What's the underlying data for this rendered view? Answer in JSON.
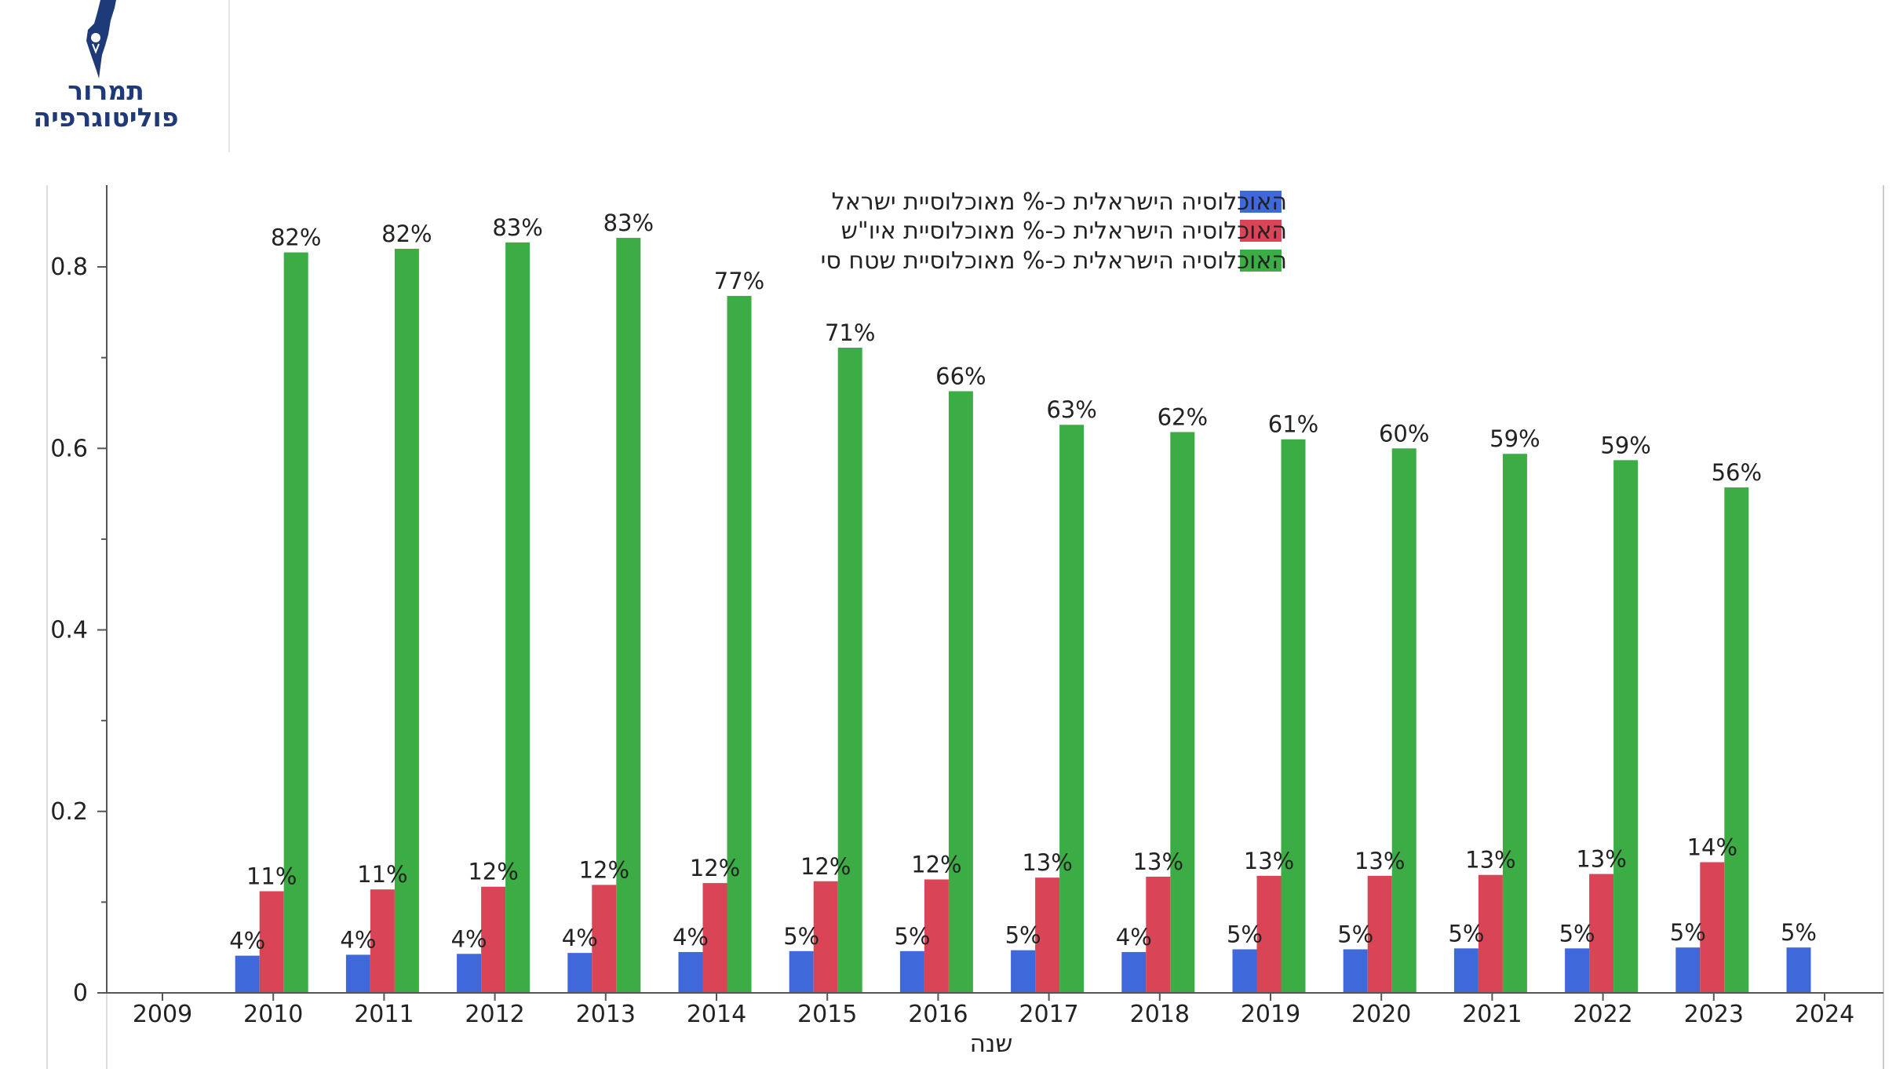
{
  "header": {
    "logo_line1": "תמרור",
    "logo_line2": "פוליטוגרפיה"
  },
  "chart_data": {
    "type": "bar",
    "title": "",
    "xlabel": "שנה",
    "ylabel": "",
    "ylim": [
      0,
      0.89
    ],
    "yticks": [
      0,
      0.2,
      0.4,
      0.6,
      0.8
    ],
    "ytick_labels": [
      "0",
      "0.2",
      "0.4",
      "0.6",
      "0.8"
    ],
    "grid": false,
    "legend_position": "top-right",
    "categories": [
      "2009",
      "2010",
      "2011",
      "2012",
      "2013",
      "2014",
      "2015",
      "2016",
      "2017",
      "2018",
      "2019",
      "2020",
      "2021",
      "2022",
      "2023",
      "2024"
    ],
    "series": [
      {
        "name": "האוכלוסיה הישראלית כ-%  מאוכלוסיית ישראל",
        "color": "#3f68db",
        "values": [
          null,
          0.041,
          0.042,
          0.043,
          0.044,
          0.045,
          0.046,
          0.046,
          0.047,
          0.045,
          0.048,
          0.048,
          0.049,
          0.049,
          0.05,
          0.05
        ],
        "labels": [
          "",
          "4%",
          "4%",
          "4%",
          "4%",
          "4%",
          "5%",
          "5%",
          "5%",
          "4%",
          "5%",
          "5%",
          "5%",
          "5%",
          "5%",
          "5%"
        ]
      },
      {
        "name": "האוכלוסיה הישראלית כ-% מאוכלוסיית איו\"ש",
        "color": "#d94456",
        "values": [
          null,
          0.112,
          0.114,
          0.117,
          0.119,
          0.121,
          0.123,
          0.125,
          0.127,
          0.128,
          0.129,
          0.129,
          0.13,
          0.131,
          0.144,
          null
        ],
        "labels": [
          "",
          "11%",
          "11%",
          "12%",
          "12%",
          "12%",
          "12%",
          "12%",
          "13%",
          "13%",
          "13%",
          "13%",
          "13%",
          "13%",
          "14%",
          ""
        ]
      },
      {
        "name": "האוכלוסיה הישראלית כ-% מאוכלוסיית שטח סי",
        "color": "#3cad44",
        "values": [
          null,
          0.816,
          0.82,
          0.827,
          0.832,
          0.768,
          0.711,
          0.663,
          0.626,
          0.618,
          0.61,
          0.6,
          0.594,
          0.587,
          0.557,
          null
        ],
        "labels": [
          "",
          "82%",
          "82%",
          "83%",
          "83%",
          "77%",
          "71%",
          "66%",
          "63%",
          "62%",
          "61%",
          "60%",
          "59%",
          "59%",
          "56%",
          ""
        ]
      }
    ]
  }
}
